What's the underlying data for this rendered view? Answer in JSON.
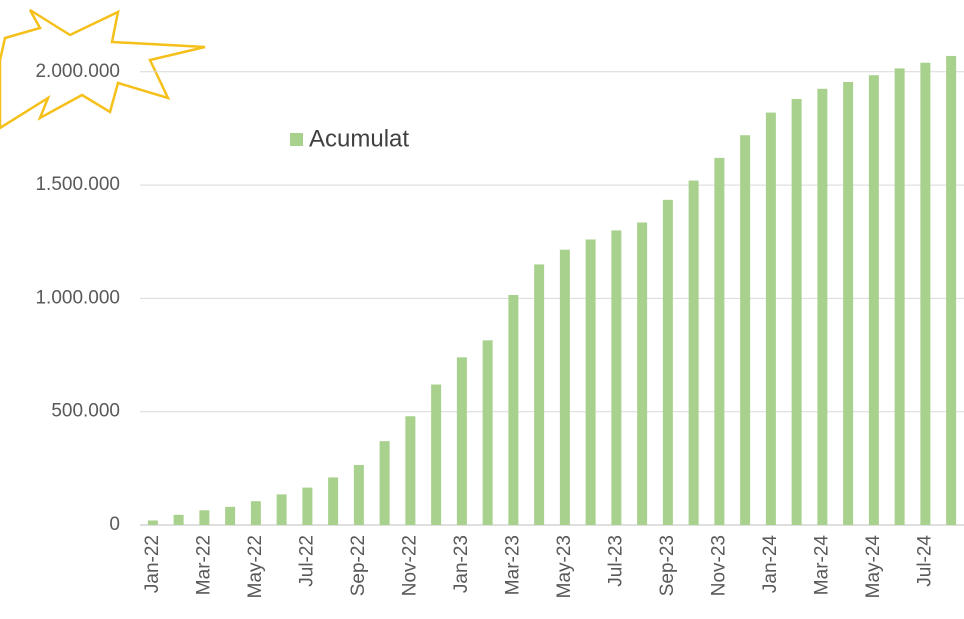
{
  "chart_data": {
    "type": "bar",
    "categories": [
      "Jan-22",
      null,
      "Mar-22",
      null,
      "May-22",
      null,
      "Jul-22",
      null,
      "Sep-22",
      null,
      "Nov-22",
      null,
      "Jan-23",
      null,
      "Mar-23",
      null,
      "May-23",
      null,
      "Jul-23",
      null,
      "Sep-23",
      null,
      "Nov-23",
      null,
      "Jan-24",
      null,
      "Mar-24",
      null,
      "May-24",
      null,
      "Jul-24",
      null
    ],
    "series": [
      {
        "name": "Acumulat",
        "color": "#a9d18e",
        "values": [
          20000,
          45000,
          65000,
          80000,
          105000,
          135000,
          165000,
          210000,
          265000,
          370000,
          480000,
          620000,
          740000,
          815000,
          1015000,
          1150000,
          1215000,
          1260000,
          1300000,
          1335000,
          1435000,
          1520000,
          1620000,
          1720000,
          1820000,
          1880000,
          1925000,
          1955000,
          1985000,
          2015000,
          2040000,
          2070000
        ]
      }
    ],
    "ylim": [
      0,
      2300000
    ],
    "yticks": [
      0,
      {
        "value": 500000,
        "label": "500.000"
      },
      {
        "value": 1000000,
        "label": "1.000.000"
      },
      {
        "value": 1500000,
        "label": "1.500.000"
      },
      {
        "value": 2000000,
        "label": "2.000.000"
      }
    ],
    "grid": true
  }
}
